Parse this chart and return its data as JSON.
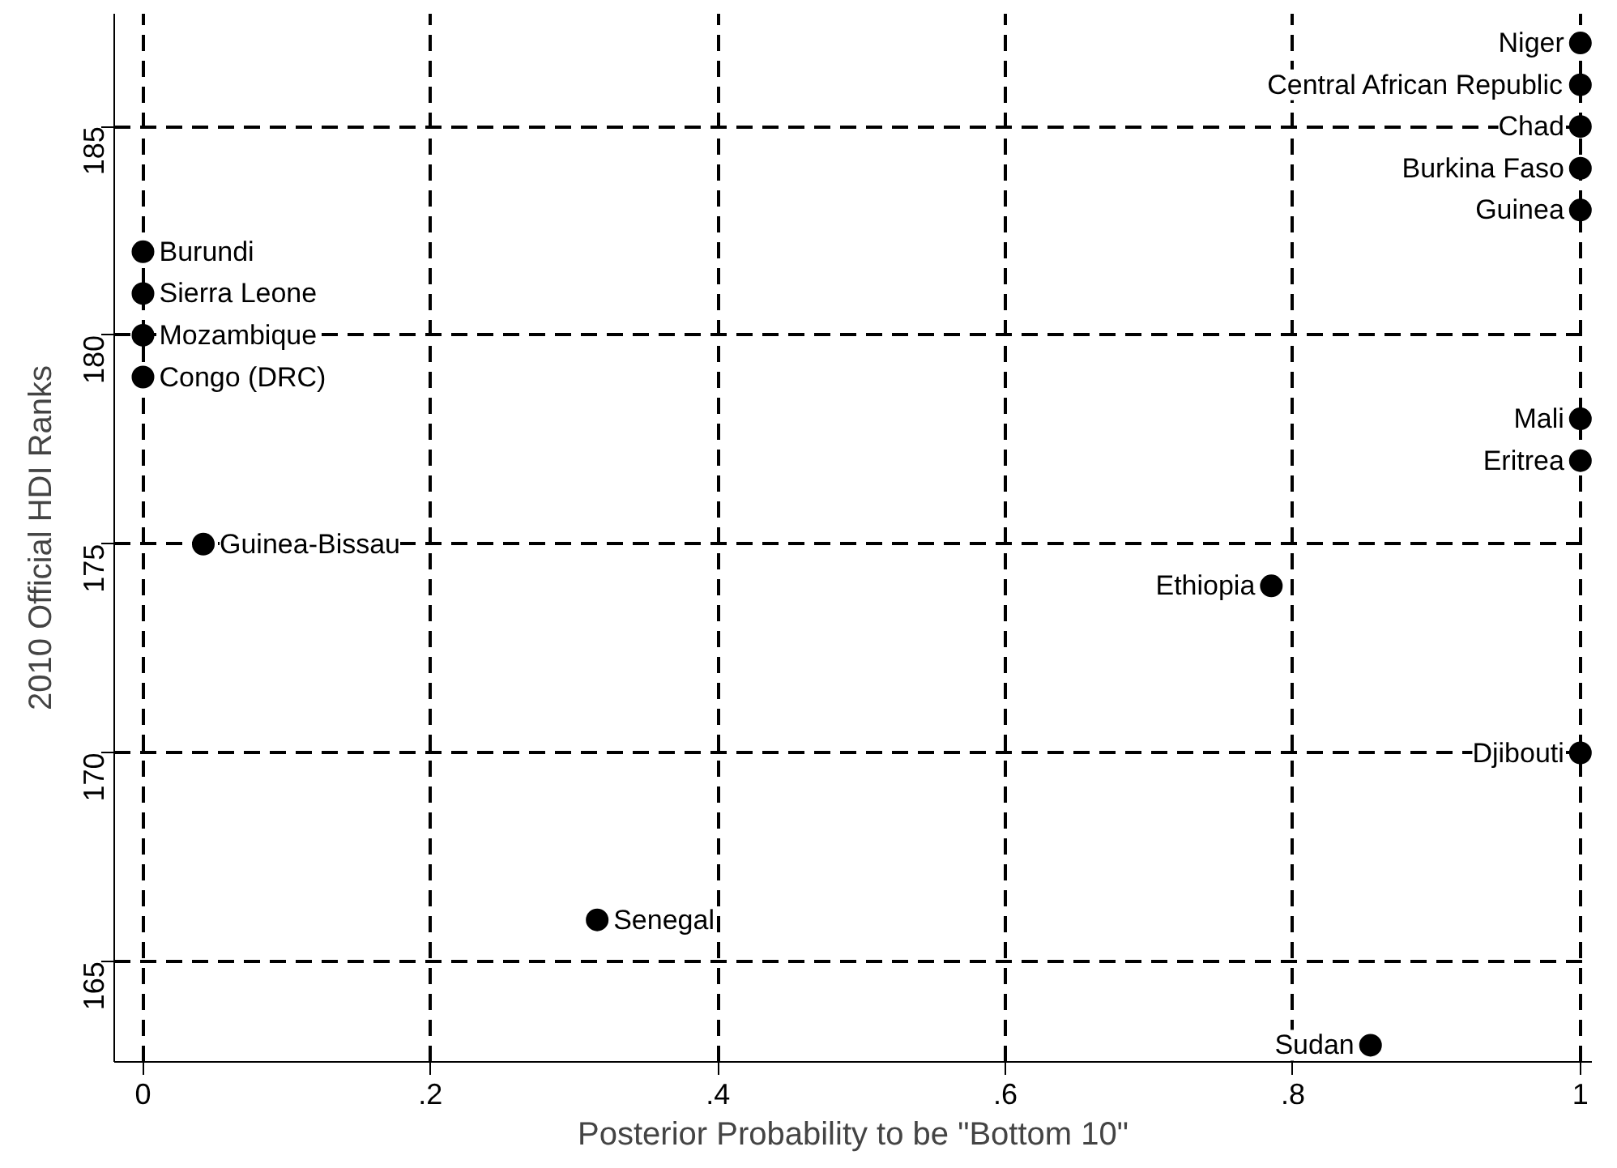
{
  "chart_data": {
    "type": "scatter",
    "xlabel": "Posterior Probability to be \"Bottom 10\"",
    "ylabel": "2010 Official HDI Ranks",
    "x": [
      1,
      1,
      1,
      1,
      1,
      0,
      0,
      0,
      0,
      1,
      1,
      0.042,
      0.785,
      1,
      0.316,
      0.854
    ],
    "series": [
      {
        "color": "#000000",
        "values": [
          187,
          186,
          185,
          184,
          183,
          182,
          181,
          180,
          179,
          178,
          177,
          175,
          174,
          170,
          166,
          163
        ]
      }
    ],
    "annotations": [
      {
        "text": "Niger",
        "x": 1,
        "y": 187
      },
      {
        "text": "Central African Republic",
        "x": 1,
        "y": 186
      },
      {
        "text": "Chad",
        "x": 1,
        "y": 185
      },
      {
        "text": "Burkina Faso",
        "x": 1,
        "y": 184
      },
      {
        "text": "Guinea",
        "x": 1,
        "y": 183
      },
      {
        "text": "Burundi",
        "x": 0,
        "y": 182
      },
      {
        "text": "Sierra Leone",
        "x": 0,
        "y": 181
      },
      {
        "text": "Mozambique",
        "x": 0,
        "y": 180
      },
      {
        "text": "Congo (DRC)",
        "x": 0,
        "y": 179
      },
      {
        "text": "Mali",
        "x": 1,
        "y": 178
      },
      {
        "text": "Eritrea",
        "x": 1,
        "y": 177
      },
      {
        "text": "Guinea-Bissau",
        "x": 0.042,
        "y": 175
      },
      {
        "text": "Ethiopia",
        "x": 0.785,
        "y": 174
      },
      {
        "text": "Djibouti",
        "x": 1,
        "y": 170
      },
      {
        "text": "Senegal",
        "x": 0.316,
        "y": 166
      },
      {
        "text": "Sudan",
        "x": 0.854,
        "y": 163
      }
    ],
    "xlim": [
      -0.02,
      1.008
    ],
    "ylim": [
      162.6,
      187.7
    ],
    "xticks": [
      {
        "value": 0,
        "label": "0"
      },
      {
        "value": 0.2,
        "label": ".2"
      },
      {
        "value": 0.4,
        "label": ".4"
      },
      {
        "value": 0.6,
        "label": ".6"
      },
      {
        "value": 0.8,
        "label": ".8"
      },
      {
        "value": 1,
        "label": "1"
      }
    ],
    "yticks": [
      165,
      170,
      175,
      180,
      185
    ],
    "grid": true,
    "marker": "circle"
  }
}
